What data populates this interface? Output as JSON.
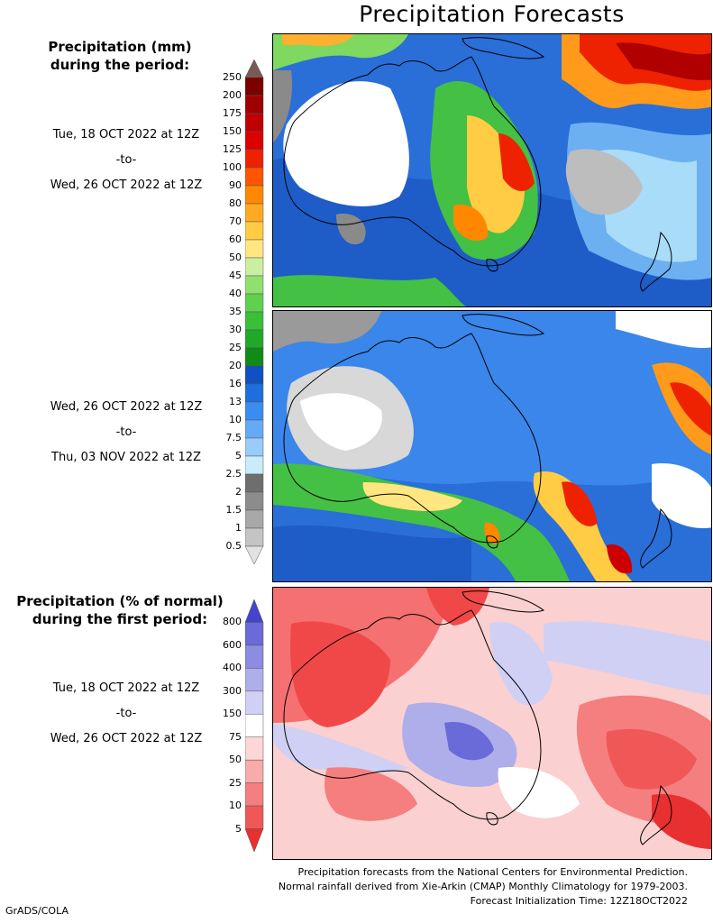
{
  "title": "Precipitation Forecasts",
  "precip_panel": {
    "heading_line1": "Precipitation (mm)",
    "heading_line2": "during the period:",
    "period1": {
      "start": "Tue, 18 OCT 2022 at 12Z",
      "sep": "-to-",
      "end": "Wed, 26 OCT 2022 at 12Z"
    },
    "period2": {
      "start": "Wed, 26 OCT 2022 at 12Z",
      "sep": "-to-",
      "end": "Thu, 03 NOV 2022 at 12Z"
    },
    "colorbar": {
      "labels": [
        "250",
        "200",
        "175",
        "150",
        "125",
        "100",
        "90",
        "80",
        "70",
        "60",
        "50",
        "45",
        "40",
        "35",
        "30",
        "25",
        "20",
        "16",
        "13",
        "10",
        "7.5",
        "5",
        "2.5",
        "2",
        "1.5",
        "1",
        "0.5"
      ],
      "colors": [
        "#7a5a55",
        "#7d0000",
        "#a00000",
        "#c00000",
        "#dd0000",
        "#ee2200",
        "#ff5500",
        "#ff8800",
        "#ffaa22",
        "#ffcc44",
        "#ffe680",
        "#c8f0a0",
        "#90e070",
        "#60d050",
        "#38c038",
        "#20a828",
        "#108a18",
        "#1050c0",
        "#1e6ee0",
        "#3a8cf0",
        "#66aaf5",
        "#99ccf8",
        "#c8ecfa",
        "#6e6e6e",
        "#8c8c8c",
        "#a8a8a8",
        "#c4c4c4",
        "#e2e2e2"
      ]
    }
  },
  "anomaly_panel": {
    "heading_line1": "Precipitation (% of normal)",
    "heading_line2": "during the first period:",
    "period": {
      "start": "Tue, 18 OCT 2022 at 12Z",
      "sep": "-to-",
      "end": "Wed, 26 OCT 2022 at 12Z"
    },
    "colorbar": {
      "labels": [
        "800",
        "600",
        "400",
        "300",
        "150",
        "75",
        "50",
        "25",
        "10",
        "5"
      ],
      "colors": [
        "#4444cc",
        "#6a6ad8",
        "#8c8ce0",
        "#aeaeea",
        "#d0d0f4",
        "#ffffff",
        "#fdd6d6",
        "#f9aaaa",
        "#f57e7e",
        "#f05858",
        "#e83030"
      ]
    }
  },
  "footer": {
    "line1": "Precipitation forecasts from the National Centers for Environmental Prediction.",
    "line2": "Normal rainfall derived from Xie-Arkin (CMAP) Monthly Climatology for 1979-2003.",
    "line3": "Forecast Initialization Time: 12Z18OCT2022"
  },
  "credit": "GrADS/COLA"
}
